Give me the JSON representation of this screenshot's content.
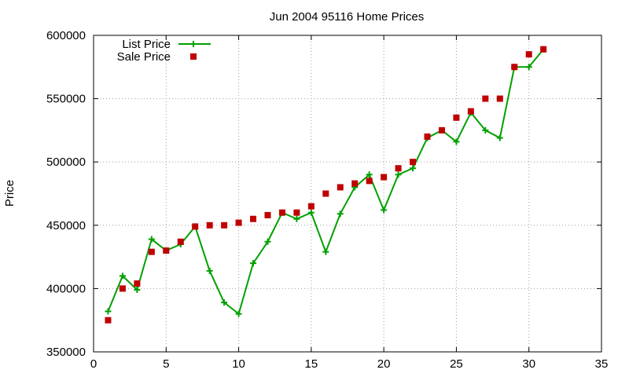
{
  "chart_data": {
    "type": "line",
    "title": "Jun 2004 95116 Home Prices",
    "xlabel": "",
    "ylabel": "Price",
    "xlim": [
      0,
      35
    ],
    "ylim": [
      350000,
      600000
    ],
    "xticks": [
      "0",
      "5",
      "10",
      "15",
      "20",
      "25",
      "30",
      "35"
    ],
    "yticks": [
      "350000",
      "400000",
      "450000",
      "500000",
      "550000",
      "600000"
    ],
    "grid": true,
    "legend_position": "top-left",
    "series": [
      {
        "name": "List Price",
        "style": "linespoints",
        "marker": "plus",
        "color": "#00a000",
        "x": [
          1,
          2,
          3,
          4,
          5,
          6,
          7,
          8,
          9,
          10,
          11,
          12,
          13,
          14,
          15,
          16,
          17,
          18,
          19,
          20,
          21,
          22,
          23,
          24,
          25,
          26,
          27,
          28,
          29,
          30,
          31
        ],
        "values": [
          382000,
          410000,
          399000,
          439000,
          430000,
          435000,
          449000,
          414000,
          389000,
          380000,
          420000,
          437000,
          460000,
          455000,
          460000,
          429000,
          459000,
          480000,
          490000,
          462000,
          490000,
          495000,
          519000,
          525000,
          516000,
          539000,
          525000,
          519000,
          575000,
          575000,
          589000
        ]
      },
      {
        "name": "Sale Price",
        "style": "points",
        "marker": "square",
        "color": "#c00000",
        "x": [
          1,
          2,
          3,
          4,
          5,
          6,
          7,
          8,
          9,
          10,
          11,
          12,
          13,
          14,
          15,
          16,
          17,
          18,
          19,
          20,
          21,
          22,
          23,
          24,
          25,
          26,
          27,
          28,
          29,
          30,
          31
        ],
        "values": [
          375000,
          400000,
          404000,
          429000,
          430000,
          437000,
          449000,
          450000,
          450000,
          452000,
          455000,
          458000,
          460000,
          460000,
          465000,
          475000,
          480000,
          483000,
          485000,
          488000,
          495000,
          500000,
          520000,
          525000,
          535000,
          540000,
          550000,
          550000,
          575000,
          585000,
          589000
        ]
      }
    ]
  }
}
